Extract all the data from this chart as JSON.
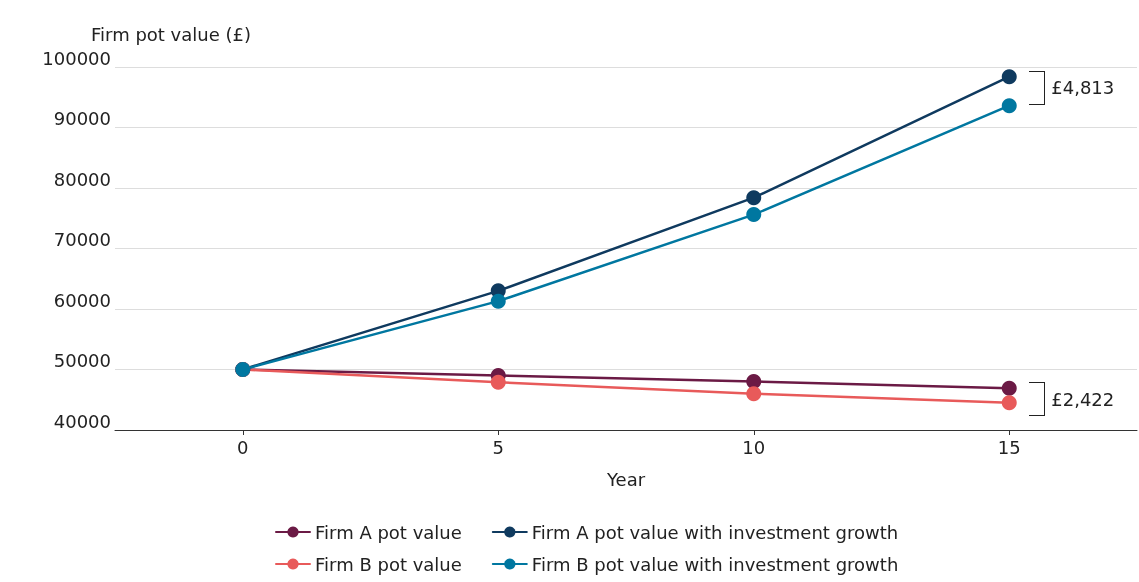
{
  "chart_data": {
    "type": "line",
    "ylabel": "Firm pot value (£)",
    "xlabel": "Year",
    "x": [
      0,
      5,
      10,
      15
    ],
    "series": [
      {
        "name": "Firm A pot value",
        "color": "#6b1a45",
        "values": [
          50000,
          49000,
          48000,
          46900
        ]
      },
      {
        "name": "Firm A pot value with investment growth",
        "color": "#0f3a5f",
        "values": [
          50000,
          63000,
          78400,
          98400
        ]
      },
      {
        "name": "Firm B pot value",
        "color": "#e85a5a",
        "values": [
          50000,
          47900,
          46000,
          44500
        ]
      },
      {
        "name": "Firm B pot value with investment growth",
        "color": "#0077a0",
        "values": [
          50000,
          61300,
          75600,
          93600
        ]
      }
    ],
    "xlim": [
      -2.5,
      17.5
    ],
    "xticks": [
      0,
      5,
      10,
      15
    ],
    "ylim": [
      40000,
      100000
    ],
    "yticks": [
      40000,
      50000,
      60000,
      70000,
      80000,
      90000,
      100000
    ],
    "grid": "y",
    "legend": "bottom",
    "marker": "circle",
    "line_style": "solid",
    "annotations": [
      {
        "text": "£4,813",
        "x": 15,
        "y": 98400
      },
      {
        "text": "£2,422",
        "x": 15,
        "y": 46900
      }
    ]
  }
}
